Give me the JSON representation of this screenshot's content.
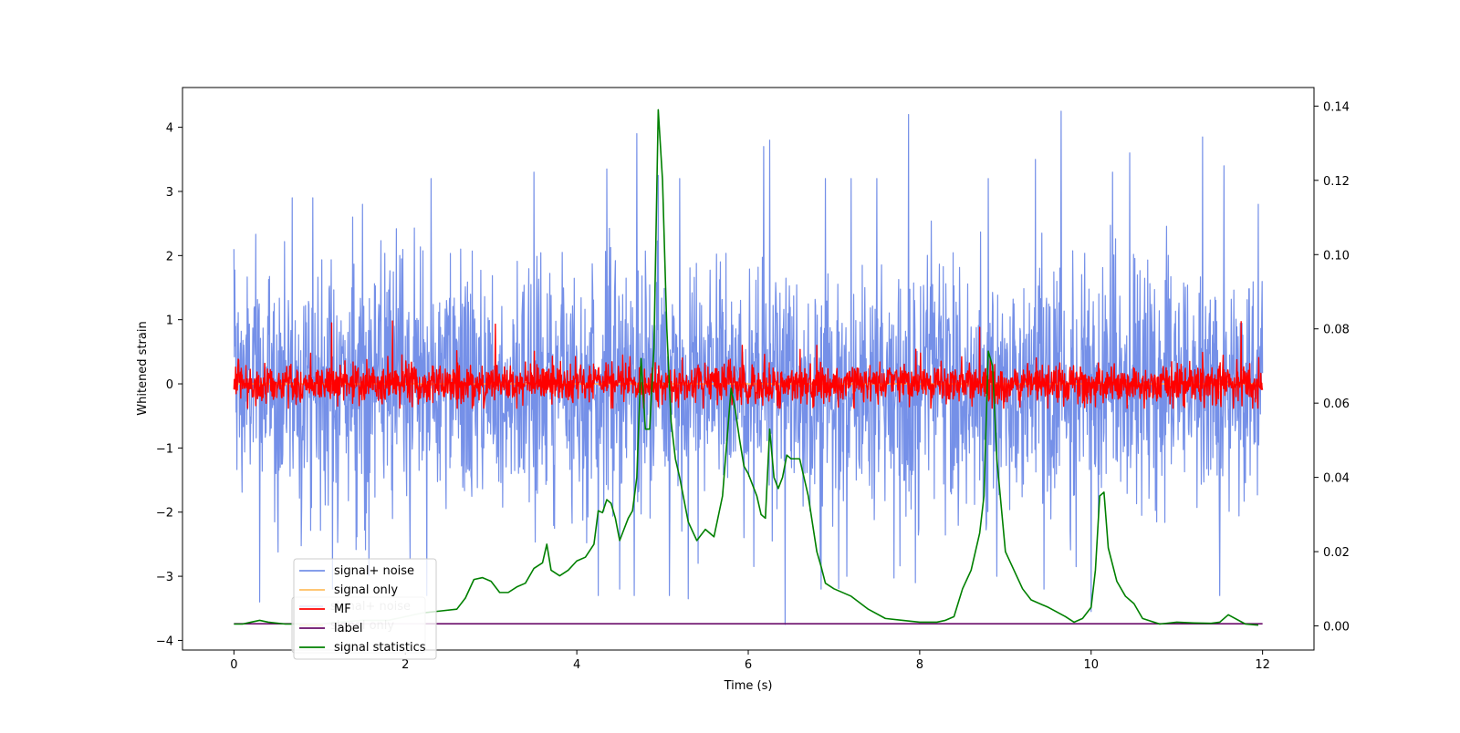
{
  "chart_data": {
    "type": "line",
    "xlabel": "Time (s)",
    "ylabel_left": "Whitened strain",
    "ylabel_right": "",
    "xlim": [
      -0.6,
      12.6
    ],
    "ylim_left": [
      -4.15,
      4.62
    ],
    "ylim_right": [
      -0.0065,
      0.145
    ],
    "x_ticks": [
      0,
      2,
      4,
      6,
      8,
      10,
      12
    ],
    "x_tick_labels": [
      "0",
      "2",
      "4",
      "6",
      "8",
      "10",
      "12"
    ],
    "y_left_ticks": [
      -4,
      -3,
      -2,
      -1,
      0,
      1,
      2,
      3,
      4
    ],
    "y_left_tick_labels": [
      "−4",
      "−3",
      "−2",
      "−1",
      "0",
      "1",
      "2",
      "3",
      "4"
    ],
    "y_right_ticks": [
      0.0,
      0.02,
      0.04,
      0.06,
      0.08,
      0.1,
      0.12,
      0.14
    ],
    "y_right_tick_labels": [
      "0.00",
      "0.02",
      "0.04",
      "0.06",
      "0.08",
      "0.10",
      "0.12",
      "0.14"
    ],
    "grid": false,
    "legend_position": "lower-left",
    "legend_ghost_labels": [
      "signal+ noise",
      "signal only"
    ],
    "series": [
      {
        "name": "signal+ noise",
        "axis": "left",
        "color": "#7590e8",
        "kind": "noise",
        "x_range": [
          0,
          12
        ],
        "amplitude_sd": 0.95,
        "clip": [
          -3.75,
          4.25
        ],
        "peaks": [
          [
            0.0,
            2.1
          ],
          [
            0.68,
            2.9
          ],
          [
            0.92,
            2.9
          ],
          [
            1.5,
            2.8
          ],
          [
            2.3,
            3.2
          ],
          [
            3.5,
            3.3
          ],
          [
            4.35,
            3.35
          ],
          [
            4.7,
            3.9
          ],
          [
            4.95,
            3.25
          ],
          [
            5.2,
            3.2
          ],
          [
            6.18,
            3.7
          ],
          [
            6.25,
            3.8
          ],
          [
            6.9,
            3.2
          ],
          [
            7.2,
            3.2
          ],
          [
            7.5,
            3.2
          ],
          [
            7.87,
            4.2
          ],
          [
            8.8,
            3.2
          ],
          [
            9.35,
            3.5
          ],
          [
            9.65,
            4.25
          ],
          [
            10.25,
            3.3
          ],
          [
            10.45,
            3.6
          ],
          [
            11.3,
            3.85
          ],
          [
            11.55,
            3.4
          ],
          [
            11.95,
            2.8
          ]
        ],
        "troughs": [
          [
            0.3,
            -3.4
          ],
          [
            1.15,
            -3.2
          ],
          [
            2.25,
            -3.3
          ],
          [
            4.25,
            -3.3
          ],
          [
            4.5,
            -3.2
          ],
          [
            4.67,
            -3.3
          ],
          [
            5.3,
            -3.35
          ],
          [
            5.08,
            -3.3
          ],
          [
            6.43,
            -3.75
          ],
          [
            6.85,
            -3.2
          ],
          [
            7.15,
            -3.0
          ],
          [
            7.95,
            -3.1
          ],
          [
            8.9,
            -3.0
          ],
          [
            9.45,
            -3.2
          ],
          [
            10.0,
            -3.55
          ],
          [
            11.5,
            -3.3
          ]
        ]
      },
      {
        "name": "signal only",
        "axis": "left",
        "color": "#ffbf60",
        "kind": "flat",
        "y": 0
      },
      {
        "name": "MF",
        "axis": "left",
        "color": "#ff0000",
        "kind": "noise",
        "x_range": [
          0,
          12
        ],
        "amplitude_sd": 0.16,
        "clip": [
          -0.38,
          0.98
        ],
        "peaks": [
          [
            1.14,
            0.95
          ],
          [
            1.85,
            0.98
          ],
          [
            3.05,
            0.93
          ],
          [
            8.7,
            0.88
          ],
          [
            11.75,
            0.97
          ],
          [
            5.93,
            0.6
          ],
          [
            6.8,
            0.6
          ]
        ],
        "troughs": []
      },
      {
        "name": "label",
        "axis": "left",
        "color": "#6a0d6a",
        "kind": "flat",
        "y": -3.74
      },
      {
        "name": "signal statistics",
        "axis": "right",
        "color": "#008000",
        "kind": "line",
        "x": [
          0.0,
          0.1,
          0.2,
          0.3,
          0.4,
          0.6,
          0.8,
          1.0,
          1.2,
          1.5,
          1.8,
          2.0,
          2.2,
          2.4,
          2.6,
          2.7,
          2.8,
          2.9,
          3.0,
          3.1,
          3.2,
          3.3,
          3.4,
          3.5,
          3.6,
          3.65,
          3.7,
          3.8,
          3.9,
          4.0,
          4.1,
          4.2,
          4.25,
          4.3,
          4.35,
          4.4,
          4.45,
          4.5,
          4.55,
          4.6,
          4.65,
          4.7,
          4.75,
          4.8,
          4.85,
          4.9,
          4.95,
          5.0,
          5.05,
          5.1,
          5.15,
          5.2,
          5.3,
          5.4,
          5.5,
          5.6,
          5.7,
          5.8,
          5.85,
          5.9,
          5.95,
          6.0,
          6.1,
          6.15,
          6.2,
          6.25,
          6.3,
          6.35,
          6.4,
          6.45,
          6.5,
          6.6,
          6.7,
          6.8,
          6.85,
          6.9,
          7.0,
          7.2,
          7.4,
          7.6,
          7.8,
          8.0,
          8.2,
          8.3,
          8.4,
          8.5,
          8.6,
          8.65,
          8.7,
          8.75,
          8.8,
          8.85,
          8.9,
          9.0,
          9.1,
          9.2,
          9.3,
          9.5,
          9.7,
          9.8,
          9.9,
          10.0,
          10.05,
          10.1,
          10.15,
          10.2,
          10.3,
          10.4,
          10.5,
          10.6,
          10.8,
          11.0,
          11.2,
          11.4,
          11.5,
          11.6,
          11.8,
          11.95
        ],
        "y": [
          0.0005,
          0.0005,
          0.001,
          0.0015,
          0.001,
          0.0005,
          0.0005,
          0.0005,
          0.001,
          0.0015,
          0.0015,
          0.0025,
          0.0035,
          0.004,
          0.0045,
          0.0075,
          0.0125,
          0.013,
          0.012,
          0.009,
          0.009,
          0.0105,
          0.0115,
          0.0155,
          0.017,
          0.022,
          0.015,
          0.0135,
          0.015,
          0.0175,
          0.0185,
          0.022,
          0.031,
          0.0305,
          0.034,
          0.033,
          0.029,
          0.023,
          0.026,
          0.029,
          0.031,
          0.04,
          0.072,
          0.053,
          0.053,
          0.075,
          0.139,
          0.12,
          0.08,
          0.055,
          0.045,
          0.04,
          0.028,
          0.023,
          0.026,
          0.024,
          0.035,
          0.064,
          0.058,
          0.05,
          0.043,
          0.041,
          0.035,
          0.03,
          0.029,
          0.053,
          0.04,
          0.037,
          0.04,
          0.046,
          0.045,
          0.045,
          0.035,
          0.02,
          0.016,
          0.0115,
          0.01,
          0.008,
          0.0045,
          0.002,
          0.0015,
          0.001,
          0.001,
          0.0015,
          0.0025,
          0.01,
          0.015,
          0.02,
          0.025,
          0.035,
          0.074,
          0.07,
          0.045,
          0.02,
          0.015,
          0.01,
          0.007,
          0.005,
          0.0025,
          0.001,
          0.002,
          0.005,
          0.015,
          0.035,
          0.036,
          0.021,
          0.012,
          0.008,
          0.006,
          0.002,
          0.0005,
          0.001,
          0.0008,
          0.0007,
          0.001,
          0.003,
          0.0005,
          0.0002
        ]
      }
    ]
  }
}
